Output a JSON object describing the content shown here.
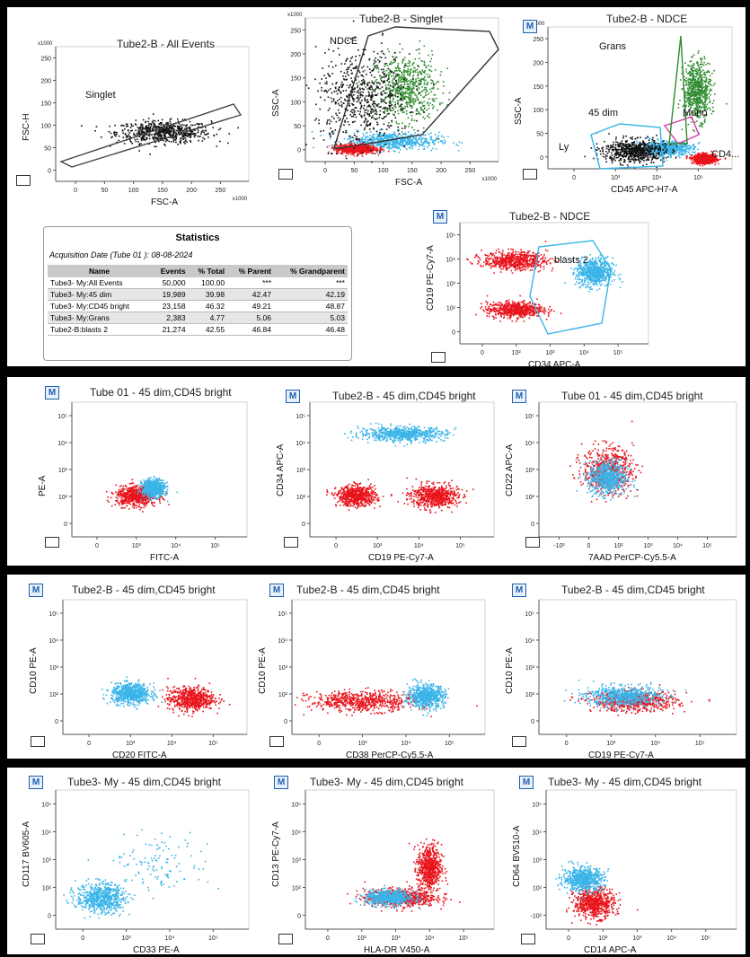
{
  "plots": [
    {
      "id": "p1",
      "title": "Tube2-B - All Events",
      "xlabel": "FSC-A",
      "ylabel": "FSC-H",
      "mbtn": false,
      "xticks": [
        "0",
        "50",
        "100",
        "150",
        "200",
        "250"
      ],
      "yticks": [
        "250",
        "200",
        "150",
        "100",
        "50",
        "0"
      ],
      "xmult": "x1000",
      "ymult": "x1000",
      "gates": [
        {
          "label": "Singlet"
        }
      ]
    },
    {
      "id": "p2",
      "title": "Tube2-B - Singlet",
      "xlabel": "FSC-A",
      "ylabel": "SSC-A",
      "mbtn": false,
      "xticks": [
        "0",
        "50",
        "100",
        "150",
        "200",
        "250"
      ],
      "yticks": [
        "250",
        "200",
        "150",
        "100",
        "50",
        "0"
      ],
      "xmult": "x1000",
      "ymult": "x1000",
      "gates": [
        {
          "label": "NDCE"
        }
      ]
    },
    {
      "id": "p3",
      "title": "Tube2-B - NDCE",
      "xlabel": "CD45 APC-H7-A",
      "ylabel": "SSC-A",
      "mbtn": true,
      "xticks": [
        "0",
        "10³",
        "10⁴",
        "10⁵"
      ],
      "yticks": [
        "250",
        "200",
        "150",
        "100",
        "50",
        "0"
      ],
      "xmult": "",
      "ymult": "x1000",
      "gates": [
        {
          "label": "Grans"
        },
        {
          "label": "45 dim"
        },
        {
          "label": "Mono"
        },
        {
          "label": "CD4..."
        },
        {
          "label": "Ly"
        }
      ]
    },
    {
      "id": "p4",
      "title": "Tube2-B - NDCE",
      "xlabel": "CD34 APC-A",
      "ylabel": "CD19 PE-Cy7-A",
      "mbtn": true,
      "xticks": [
        "0",
        "10²",
        "10³",
        "10⁴",
        "10⁵"
      ],
      "yticks": [
        "10⁵",
        "10⁴",
        "10³",
        "10²",
        "0"
      ],
      "xmult": "",
      "ymult": "",
      "gates": [
        {
          "label": "blasts 2"
        }
      ]
    },
    {
      "id": "p5",
      "title": "Tube 01  - 45 dim,CD45 bright",
      "xlabel": "FITC-A",
      "ylabel": "PE-A",
      "mbtn": true,
      "xticks": [
        "0",
        "10³",
        "10⁴",
        "10⁵"
      ],
      "yticks": [
        "10⁵",
        "10⁴",
        "10³",
        "10²",
        "0"
      ],
      "xmult": "",
      "ymult": "",
      "gates": []
    },
    {
      "id": "p6",
      "title": "Tube2-B - 45 dim,CD45 bright",
      "xlabel": "CD19 PE-Cy7-A",
      "ylabel": "CD34 APC-A",
      "mbtn": true,
      "xticks": [
        "0",
        "10³",
        "10⁴",
        "10⁵"
      ],
      "yticks": [
        "10⁵",
        "10⁴",
        "10³",
        "10²",
        "0"
      ],
      "xmult": "",
      "ymult": "",
      "gates": []
    },
    {
      "id": "p7",
      "title": "Tube 01  - 45 dim,CD45 bright",
      "xlabel": "7AAD PerCP-Cy5.5-A",
      "ylabel": "CD22 APC-A",
      "mbtn": true,
      "xticks": [
        "-10²",
        "0",
        "10²",
        "10³",
        "10⁴",
        "10⁵"
      ],
      "yticks": [
        "10⁵",
        "10⁴",
        "10³",
        "10²",
        "0"
      ],
      "xmult": "",
      "ymult": "",
      "gates": []
    },
    {
      "id": "p8",
      "title": "Tube2-B - 45 dim,CD45 bright",
      "xlabel": "CD20 FITC-A",
      "ylabel": "CD10 PE-A",
      "mbtn": true,
      "xticks": [
        "0",
        "10³",
        "10⁴",
        "10⁵"
      ],
      "yticks": [
        "10⁵",
        "10⁴",
        "10³",
        "10²",
        "0"
      ],
      "xmult": "",
      "ymult": "",
      "gates": []
    },
    {
      "id": "p9",
      "title": "Tube2-B - 45 dim,CD45 bright",
      "xlabel": "CD38 PerCP-Cy5.5-A",
      "ylabel": "CD10 PE-A",
      "mbtn": true,
      "xticks": [
        "0",
        "10³",
        "10⁴",
        "10⁵"
      ],
      "yticks": [
        "10⁵",
        "10⁴",
        "10³",
        "10²",
        "0"
      ],
      "xmult": "",
      "ymult": "",
      "gates": []
    },
    {
      "id": "p10",
      "title": "Tube2-B - 45 dim,CD45 bright",
      "xlabel": "CD19 PE-Cy7-A",
      "ylabel": "CD10 PE-A",
      "mbtn": true,
      "xticks": [
        "0",
        "10³",
        "10⁴",
        "10⁵"
      ],
      "yticks": [
        "10⁵",
        "10⁴",
        "10³",
        "10²",
        "0"
      ],
      "xmult": "",
      "ymult": "",
      "gates": []
    },
    {
      "id": "p11",
      "title": "Tube3- My - 45 dim,CD45 bright",
      "xlabel": "CD33 PE-A",
      "ylabel": "CD117 BV605-A",
      "mbtn": true,
      "xticks": [
        "0",
        "10³",
        "10⁴",
        "10⁵"
      ],
      "yticks": [
        "10⁵",
        "10⁴",
        "10³",
        "10²",
        "0"
      ],
      "xmult": "",
      "ymult": "",
      "gates": []
    },
    {
      "id": "p12",
      "title": "Tube3- My - 45 dim,CD45 bright",
      "xlabel": "HLA-DR V450-A",
      "ylabel": "CD13 PE-Cy7-A",
      "mbtn": true,
      "xticks": [
        "0",
        "10²",
        "10³",
        "10⁴",
        "10⁵"
      ],
      "yticks": [
        "10⁵",
        "10⁴",
        "10³",
        "10²",
        "0"
      ],
      "xmult": "",
      "ymult": "",
      "gates": []
    },
    {
      "id": "p13",
      "title": "Tube3- My - 45 dim,CD45 bright",
      "xlabel": "CD14 APC-A",
      "ylabel": "CD64 BV510-A",
      "mbtn": true,
      "xticks": [
        "0",
        "10²",
        "10³",
        "10⁴",
        "10⁵"
      ],
      "yticks": [
        "10⁵",
        "10⁴",
        "10³",
        "10²",
        "-10²"
      ],
      "xmult": "",
      "ymult": "",
      "gates": []
    }
  ],
  "stats": {
    "title": "Statistics",
    "acquisition": "Acquisition Date (Tube 01 ): 08-08-2024",
    "columns": [
      "Name",
      "Events",
      "% Total",
      "% Parent",
      "% Grandparent"
    ],
    "rows": [
      [
        "Tube3- My:All Events",
        "50,000",
        "100.00",
        "***",
        "***"
      ],
      [
        "Tube3- My:45 dim",
        "19,989",
        "39.98",
        "42.47",
        "42.19"
      ],
      [
        "Tube3- My:CD45 bright",
        "23,158",
        "46.32",
        "49.21",
        "48.87"
      ],
      [
        "Tube3- My:Grans",
        "2,383",
        "4.77",
        "5.06",
        "5.03"
      ],
      [
        "Tube2-B:blasts 2",
        "21,274",
        "42.55",
        "46.84",
        "46.48"
      ]
    ]
  },
  "colors": {
    "red": "#e8141c",
    "cyan": "#3ab4e8",
    "green": "#2e8b2e",
    "black": "#111111",
    "background": "#000000",
    "gate_dark": "#333333",
    "gate_magenta": "#d63aa8"
  },
  "chart_data": [
    {
      "type": "scatter",
      "title": "Tube2-B - All Events",
      "xlabel": "FSC-A",
      "ylabel": "FSC-H",
      "xlim": [
        0,
        270
      ],
      "ylim": [
        0,
        270
      ],
      "units": "x1000",
      "populations": [
        {
          "color": "black",
          "center": [
            150,
            100
          ],
          "spread": [
            60,
            20
          ],
          "note": "diagonal singlet population"
        }
      ]
    },
    {
      "type": "scatter",
      "title": "Tube2-B - Singlet",
      "xlabel": "FSC-A",
      "ylabel": "SSC-A",
      "xlim": [
        0,
        270
      ],
      "ylim": [
        0,
        270
      ],
      "units": "x1000",
      "populations": [
        {
          "color": "green",
          "center": [
            140,
            140
          ],
          "spread": [
            40,
            55
          ]
        },
        {
          "color": "cyan",
          "center": [
            120,
            40
          ],
          "spread": [
            60,
            15
          ]
        },
        {
          "color": "red",
          "center": [
            70,
            25
          ],
          "spread": [
            25,
            8
          ]
        },
        {
          "color": "black",
          "center": [
            80,
            120
          ],
          "spread": [
            60,
            80
          ]
        }
      ]
    },
    {
      "type": "scatter",
      "title": "Tube2-B - NDCE",
      "xlabel": "CD45 APC-H7-A",
      "ylabel": "SSC-A",
      "ylim": [
        0,
        270
      ],
      "populations": [
        {
          "color": "green",
          "center": [
            4.2,
            150
          ],
          "spread": [
            0.35,
            50
          ]
        },
        {
          "color": "cyan",
          "center": [
            3.3,
            40
          ],
          "spread": [
            0.7,
            12
          ]
        },
        {
          "color": "red",
          "center": [
            4.4,
            20
          ],
          "spread": [
            0.3,
            8
          ]
        },
        {
          "color": "black",
          "center": [
            2.4,
            35
          ],
          "spread": [
            0.8,
            20
          ]
        }
      ]
    },
    {
      "type": "scatter",
      "title": "Tube2-B - NDCE",
      "xlabel": "CD34 APC-A",
      "ylabel": "CD19 PE-Cy7-A",
      "populations": [
        {
          "color": "red",
          "center": [
            1.5,
            3.6
          ],
          "spread": [
            0.8,
            0.35
          ]
        },
        {
          "color": "cyan",
          "center": [
            3.7,
            3.1
          ],
          "spread": [
            0.45,
            0.55
          ]
        },
        {
          "color": "red",
          "center": [
            1.5,
            1.5
          ],
          "spread": [
            0.7,
            0.3
          ]
        }
      ]
    },
    {
      "type": "scatter",
      "title": "Tube 01  - 45 dim,CD45 bright",
      "xlabel": "FITC-A",
      "ylabel": "PE-A",
      "populations": [
        {
          "color": "red",
          "center": [
            1.9,
            1.6
          ],
          "spread": [
            0.55,
            0.35
          ]
        },
        {
          "color": "cyan",
          "center": [
            2.4,
            1.9
          ],
          "spread": [
            0.3,
            0.3
          ]
        }
      ]
    },
    {
      "type": "scatter",
      "title": "Tube2-B - 45 dim,CD45 bright",
      "xlabel": "CD19 PE-Cy7-A",
      "ylabel": "CD34 APC-A",
      "populations": [
        {
          "color": "cyan",
          "center": [
            2.6,
            4.0
          ],
          "spread": [
            1.1,
            0.25
          ]
        },
        {
          "color": "red",
          "center": [
            1.3,
            1.6
          ],
          "spread": [
            0.5,
            0.35
          ]
        },
        {
          "color": "red",
          "center": [
            3.5,
            1.6
          ],
          "spread": [
            0.6,
            0.4
          ]
        }
      ]
    },
    {
      "type": "scatter",
      "title": "Tube 01  - 45 dim,CD45 bright",
      "xlabel": "7AAD PerCP-Cy5.5-A",
      "ylabel": "CD22 APC-A",
      "populations": [
        {
          "color": "red",
          "center": [
            1.8,
            2.6
          ],
          "spread": [
            0.6,
            0.8
          ]
        },
        {
          "color": "cyan",
          "center": [
            1.8,
            2.3
          ],
          "spread": [
            0.45,
            0.6
          ]
        }
      ]
    },
    {
      "type": "scatter",
      "title": "Tube2-B - 45 dim,CD45 bright",
      "xlabel": "CD20 FITC-A",
      "ylabel": "CD10 PE-A",
      "populations": [
        {
          "color": "red",
          "center": [
            3.6,
            1.4
          ],
          "spread": [
            0.6,
            0.4
          ]
        },
        {
          "color": "cyan",
          "center": [
            1.9,
            1.6
          ],
          "spread": [
            0.5,
            0.35
          ]
        }
      ]
    },
    {
      "type": "scatter",
      "title": "Tube2-B - 45 dim,CD45 bright",
      "xlabel": "CD38 PerCP-Cy5.5-A",
      "ylabel": "CD10 PE-A",
      "populations": [
        {
          "color": "red",
          "center": [
            1.9,
            1.3
          ],
          "spread": [
            1.3,
            0.35
          ]
        },
        {
          "color": "cyan",
          "center": [
            3.6,
            1.5
          ],
          "spread": [
            0.45,
            0.4
          ]
        }
      ]
    },
    {
      "type": "scatter",
      "title": "Tube2-B - 45 dim,CD45 bright",
      "xlabel": "CD19 PE-Cy7-A",
      "ylabel": "CD10 PE-A",
      "populations": [
        {
          "color": "red",
          "center": [
            2.5,
            1.3
          ],
          "spread": [
            1.0,
            0.35
          ]
        },
        {
          "color": "cyan",
          "center": [
            2.2,
            1.5
          ],
          "spread": [
            0.9,
            0.35
          ]
        }
      ]
    },
    {
      "type": "scatter",
      "title": "Tube3- My - 45 dim,CD45 bright",
      "xlabel": "CD33 PE-A",
      "ylabel": "CD117 BV605-A",
      "populations": [
        {
          "color": "cyan",
          "center": [
            1.2,
            1.2
          ],
          "spread": [
            0.6,
            0.5
          ]
        },
        {
          "color": "cyan",
          "center": [
            2.8,
            2.5
          ],
          "spread": [
            1.2,
            1.0
          ],
          "note": "sparse"
        }
      ]
    },
    {
      "type": "scatter",
      "title": "Tube3- My - 45 dim,CD45 bright",
      "xlabel": "HLA-DR V450-A",
      "ylabel": "CD13 PE-Cy7-A",
      "populations": [
        {
          "color": "red",
          "center": [
            3.4,
            2.3
          ],
          "spread": [
            0.3,
            0.8
          ]
        },
        {
          "color": "red",
          "center": [
            2.6,
            1.2
          ],
          "spread": [
            0.9,
            0.3
          ]
        },
        {
          "color": "cyan",
          "center": [
            2.3,
            1.2
          ],
          "spread": [
            0.6,
            0.25
          ]
        }
      ]
    },
    {
      "type": "scatter",
      "title": "Tube3- My - 45 dim,CD45 bright",
      "xlabel": "CD14 APC-A",
      "ylabel": "CD64 BV510-A",
      "populations": [
        {
          "color": "red",
          "center": [
            1.3,
            1.0
          ],
          "spread": [
            0.5,
            0.5
          ]
        },
        {
          "color": "cyan",
          "center": [
            1.0,
            1.9
          ],
          "spread": [
            0.5,
            0.4
          ]
        }
      ]
    }
  ]
}
